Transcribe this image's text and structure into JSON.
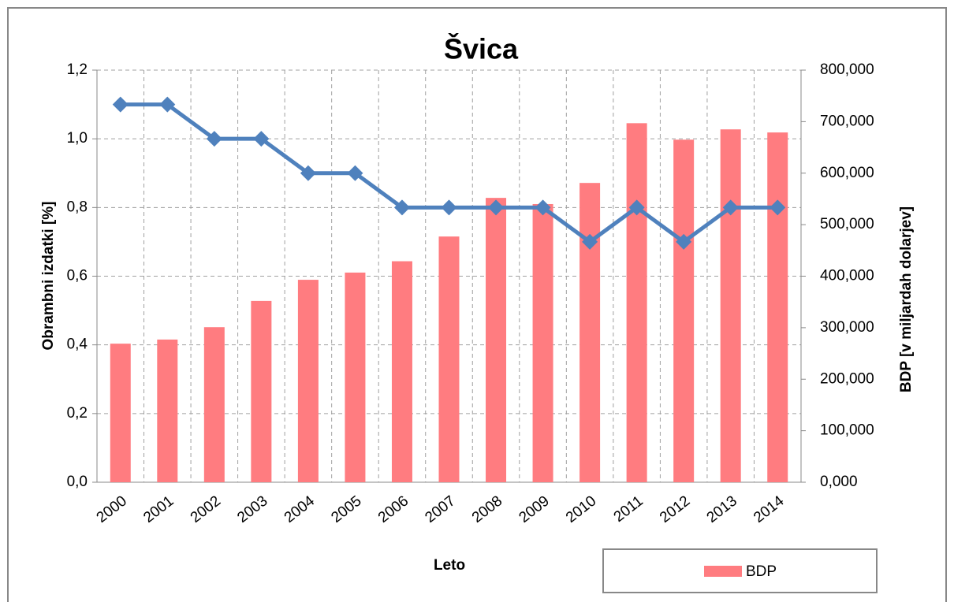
{
  "chart_data": {
    "type": "bar-line",
    "title": "Švica",
    "x_label": "Leto",
    "y_label": "Obrambni izdatki [%]",
    "y2_label": "BDP [v miljardah dolarjev]",
    "categories": [
      "2000",
      "2001",
      "2002",
      "2003",
      "2004",
      "2005",
      "2006",
      "2007",
      "2008",
      "2009",
      "2010",
      "2011",
      "2012",
      "2013",
      "2014"
    ],
    "series": [
      {
        "name": "BDP",
        "type": "bar",
        "axis": "y2",
        "color": "#ff7c80",
        "values": [
          269,
          277,
          301,
          352,
          393,
          407,
          429,
          477,
          552,
          540,
          581,
          697,
          665,
          685,
          679
        ]
      },
      {
        "type": "line",
        "axis": "y",
        "color": "#4f81bd",
        "values": [
          1.1,
          1.1,
          1.0,
          1.0,
          0.9,
          0.9,
          0.8,
          0.8,
          0.8,
          0.8,
          0.7,
          0.8,
          0.7,
          0.8,
          0.8
        ]
      }
    ],
    "ylim": [
      0,
      1.2
    ],
    "yticks": [
      {
        "value": 0,
        "label": "0,0"
      },
      {
        "value": 0.2,
        "label": "0,2"
      },
      {
        "value": 0.4,
        "label": "0,4"
      },
      {
        "value": 0.6,
        "label": "0,6"
      },
      {
        "value": 0.8,
        "label": "0,8"
      },
      {
        "value": 1.0,
        "label": "1,0"
      },
      {
        "value": 1.2,
        "label": "1,2"
      }
    ],
    "y2lim": [
      0,
      800
    ],
    "y2ticks": [
      {
        "value": 0,
        "label": "0,000"
      },
      {
        "value": 100,
        "label": "100,000"
      },
      {
        "value": 200,
        "label": "200,000"
      },
      {
        "value": 300,
        "label": "300,000"
      },
      {
        "value": 400,
        "label": "400,000"
      },
      {
        "value": 500,
        "label": "500,000"
      },
      {
        "value": 600,
        "label": "600,000"
      },
      {
        "value": 700,
        "label": "700,000"
      },
      {
        "value": 800,
        "label": "800,000"
      }
    ],
    "grid": true
  }
}
